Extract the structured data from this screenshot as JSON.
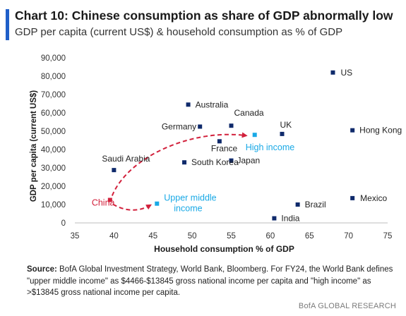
{
  "header": {
    "title": "Chart 10: Chinese consumption as share of GDP abnormally low",
    "subtitle": "GDP per capita (current US$) & household consumption as % of GDP"
  },
  "chart_data": {
    "type": "scatter",
    "xlabel": "Household consumption % of GDP",
    "ylabel": "GDP per capita (current US$)",
    "xlim": [
      35,
      75
    ],
    "ylim": [
      0,
      90000
    ],
    "xticks": [
      "35",
      "40",
      "45",
      "50",
      "55",
      "60",
      "65",
      "70",
      "75"
    ],
    "yticks": [
      "0",
      "10,000",
      "20,000",
      "30,000",
      "40,000",
      "50,000",
      "60,000",
      "70,000",
      "80,000",
      "90,000"
    ],
    "grid": false,
    "points": [
      {
        "label": "US",
        "x": 68,
        "y": 82000,
        "color": "#0f2a6b"
      },
      {
        "label": "Australia",
        "x": 49.5,
        "y": 64500,
        "color": "#0f2a6b"
      },
      {
        "label": "Canada",
        "x": 55,
        "y": 53000,
        "color": "#0f2a6b"
      },
      {
        "label": "Germany",
        "x": 51,
        "y": 52500,
        "color": "#0f2a6b"
      },
      {
        "label": "UK",
        "x": 61.5,
        "y": 48500,
        "color": "#0f2a6b"
      },
      {
        "label": "Hong Kong",
        "x": 70.5,
        "y": 50500,
        "color": "#0f2a6b"
      },
      {
        "label": "France",
        "x": 53.5,
        "y": 44500,
        "color": "#0f2a6b"
      },
      {
        "label": "High income",
        "x": 58,
        "y": 48000,
        "color": "#19a9e6"
      },
      {
        "label": "Saudi Arabia",
        "x": 40,
        "y": 28800,
        "color": "#0f2a6b"
      },
      {
        "label": "South Korea",
        "x": 49,
        "y": 33000,
        "color": "#0f2a6b"
      },
      {
        "label": "Japan",
        "x": 55,
        "y": 34000,
        "color": "#0f2a6b"
      },
      {
        "label": "China",
        "x": 39.5,
        "y": 12500,
        "color": "#d2213c"
      },
      {
        "label": "Upper middle income",
        "x": 45.5,
        "y": 10500,
        "color": "#19a9e6"
      },
      {
        "label": "Brazil",
        "x": 63.5,
        "y": 10000,
        "color": "#0f2a6b"
      },
      {
        "label": "Mexico",
        "x": 70.5,
        "y": 13500,
        "color": "#0f2a6b"
      },
      {
        "label": "India",
        "x": 60.5,
        "y": 2500,
        "color": "#0f2a6b"
      }
    ],
    "annotations": [
      {
        "type": "dashed-arrow",
        "from": "China",
        "to": "High income",
        "color": "#d2213c"
      },
      {
        "type": "dashed-arrow",
        "from": "China",
        "to": "Upper middle income",
        "color": "#d2213c"
      }
    ]
  },
  "source": {
    "label": "Source:",
    "text": " BofA Global Investment Strategy, World Bank, Bloomberg. For FY24, the World Bank defines \"upper middle income\" as $4466-$13845 gross national income per capita and \"high income\" as >$13845 gross national income per capita."
  },
  "footer": {
    "credit": "BofA GLOBAL RESEARCH"
  },
  "colors": {
    "accent": "#1f5fc9",
    "marker": "#0f2a6b",
    "highlight": "#19a9e6",
    "china": "#d2213c"
  }
}
